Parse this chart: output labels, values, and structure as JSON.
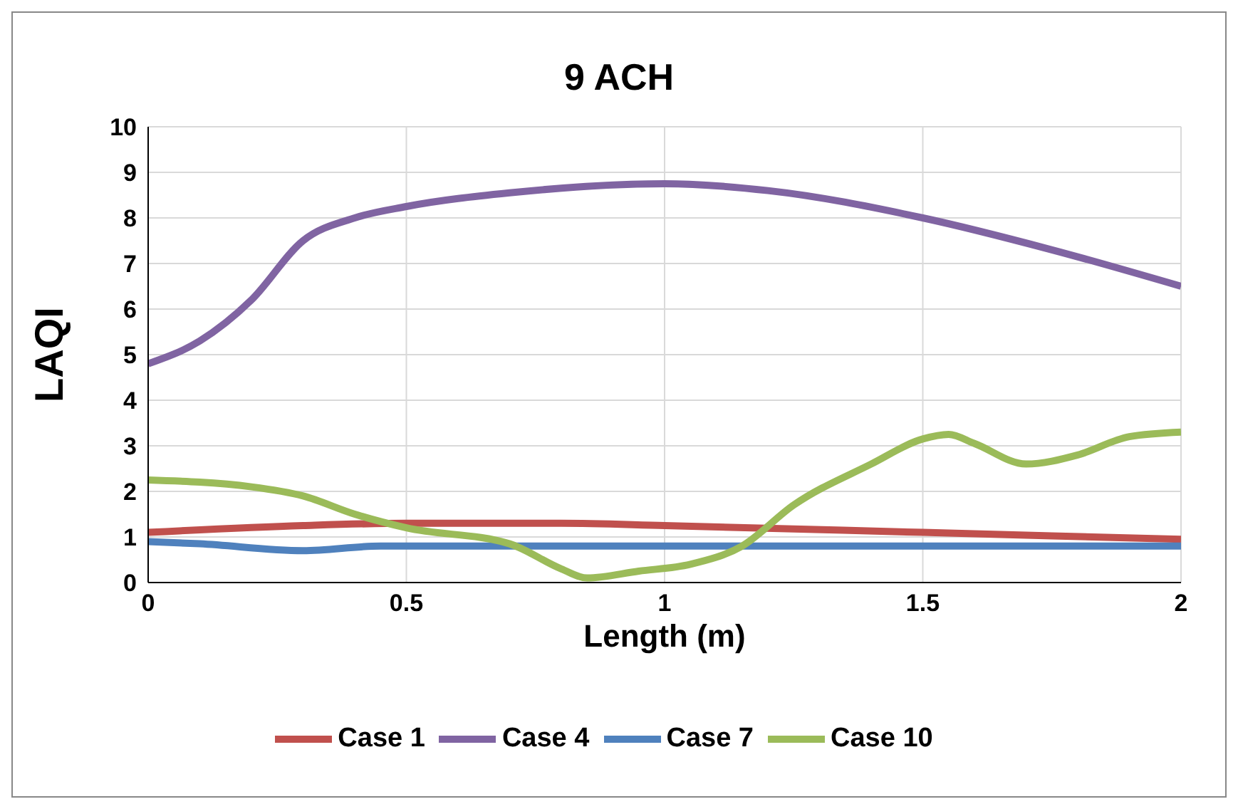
{
  "chart_data": {
    "type": "line",
    "title": "9 ACH",
    "xlabel": "Length (m)",
    "ylabel": "LAQI",
    "xlim": [
      0,
      2
    ],
    "xticks": [
      0,
      0.5,
      1,
      1.5,
      2
    ],
    "ylim": [
      0,
      10
    ],
    "yticks": [
      0,
      1,
      2,
      3,
      4,
      5,
      6,
      7,
      8,
      9,
      10
    ],
    "grid": true,
    "legend": "bottom",
    "marker": "none",
    "line_style": "solid",
    "series": [
      {
        "name": "Case 1",
        "color": "#c0504d",
        "x": [
          0,
          0.3,
          0.5,
          0.8,
          1,
          1.5,
          2
        ],
        "values": [
          1.1,
          1.25,
          1.3,
          1.3,
          1.25,
          1.1,
          0.95
        ]
      },
      {
        "name": "Case 4",
        "color": "#8064a2",
        "x": [
          0,
          0.1,
          0.2,
          0.3,
          0.4,
          0.5,
          0.7,
          1,
          1.2,
          1.5,
          1.75,
          2
        ],
        "values": [
          4.8,
          5.3,
          6.2,
          7.5,
          8,
          8.25,
          8.55,
          8.75,
          8.6,
          8,
          7.3,
          6.5
        ]
      },
      {
        "name": "Case 7",
        "color": "#4f81bd",
        "x": [
          0,
          0.1,
          0.3,
          0.45,
          1,
          2
        ],
        "values": [
          0.9,
          0.85,
          0.7,
          0.8,
          0.8,
          0.8
        ]
      },
      {
        "name": "Case 10",
        "color": "#9bbb59",
        "x": [
          0,
          0.2,
          0.3,
          0.4,
          0.5,
          0.7,
          0.8,
          0.85,
          0.95,
          1.05,
          1.15,
          1.25,
          1.4,
          1.5,
          1.55,
          1.6,
          1.7,
          1.8,
          1.9,
          2
        ],
        "values": [
          2.25,
          2.1,
          1.9,
          1.5,
          1.2,
          0.85,
          0.3,
          0.1,
          0.25,
          0.4,
          0.8,
          1.7,
          2.6,
          3.15,
          3.25,
          3.05,
          2.6,
          2.8,
          3.2,
          3.3
        ]
      }
    ]
  }
}
